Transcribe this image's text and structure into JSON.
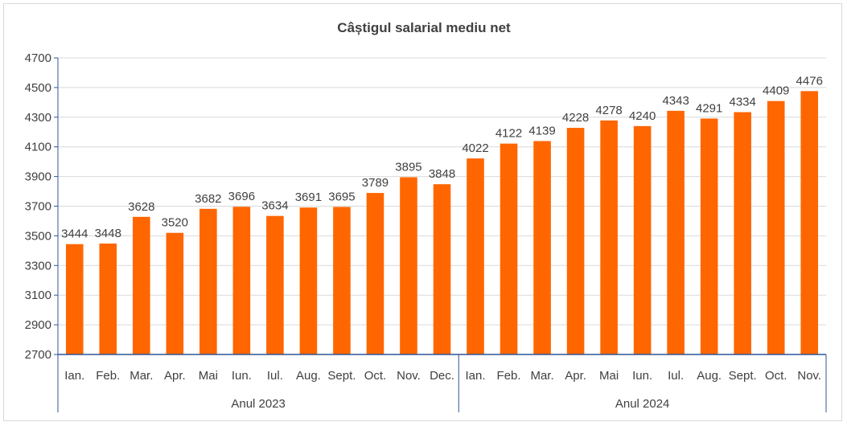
{
  "chart_data": {
    "type": "bar",
    "title": "Câștigul salarial mediu net",
    "xlabel": "",
    "ylabel": "",
    "ylim": [
      2700,
      4700
    ],
    "yticks": [
      2700,
      2900,
      3100,
      3300,
      3500,
      3700,
      3900,
      4100,
      4300,
      4500,
      4700
    ],
    "categories": [
      "Ian.",
      "Feb.",
      "Mar.",
      "Apr.",
      "Mai",
      "Iun.",
      "Iul.",
      "Aug.",
      "Sept.",
      "Oct.",
      "Nov.",
      "Dec.",
      "Ian.",
      "Feb.",
      "Mar.",
      "Apr.",
      "Mai",
      "Iun.",
      "Iul.",
      "Aug.",
      "Sept.",
      "Oct.",
      "Nov."
    ],
    "values": [
      3444,
      3448,
      3628,
      3520,
      3682,
      3696,
      3634,
      3691,
      3695,
      3789,
      3895,
      3848,
      4022,
      4122,
      4139,
      4228,
      4278,
      4240,
      4343,
      4291,
      4334,
      4409,
      4476
    ],
    "groups": [
      {
        "label": "Anul 2023",
        "count": 12
      },
      {
        "label": "Anul 2024",
        "count": 11
      }
    ],
    "bar_color": "#FF6600",
    "grid": true,
    "legend": "none"
  }
}
